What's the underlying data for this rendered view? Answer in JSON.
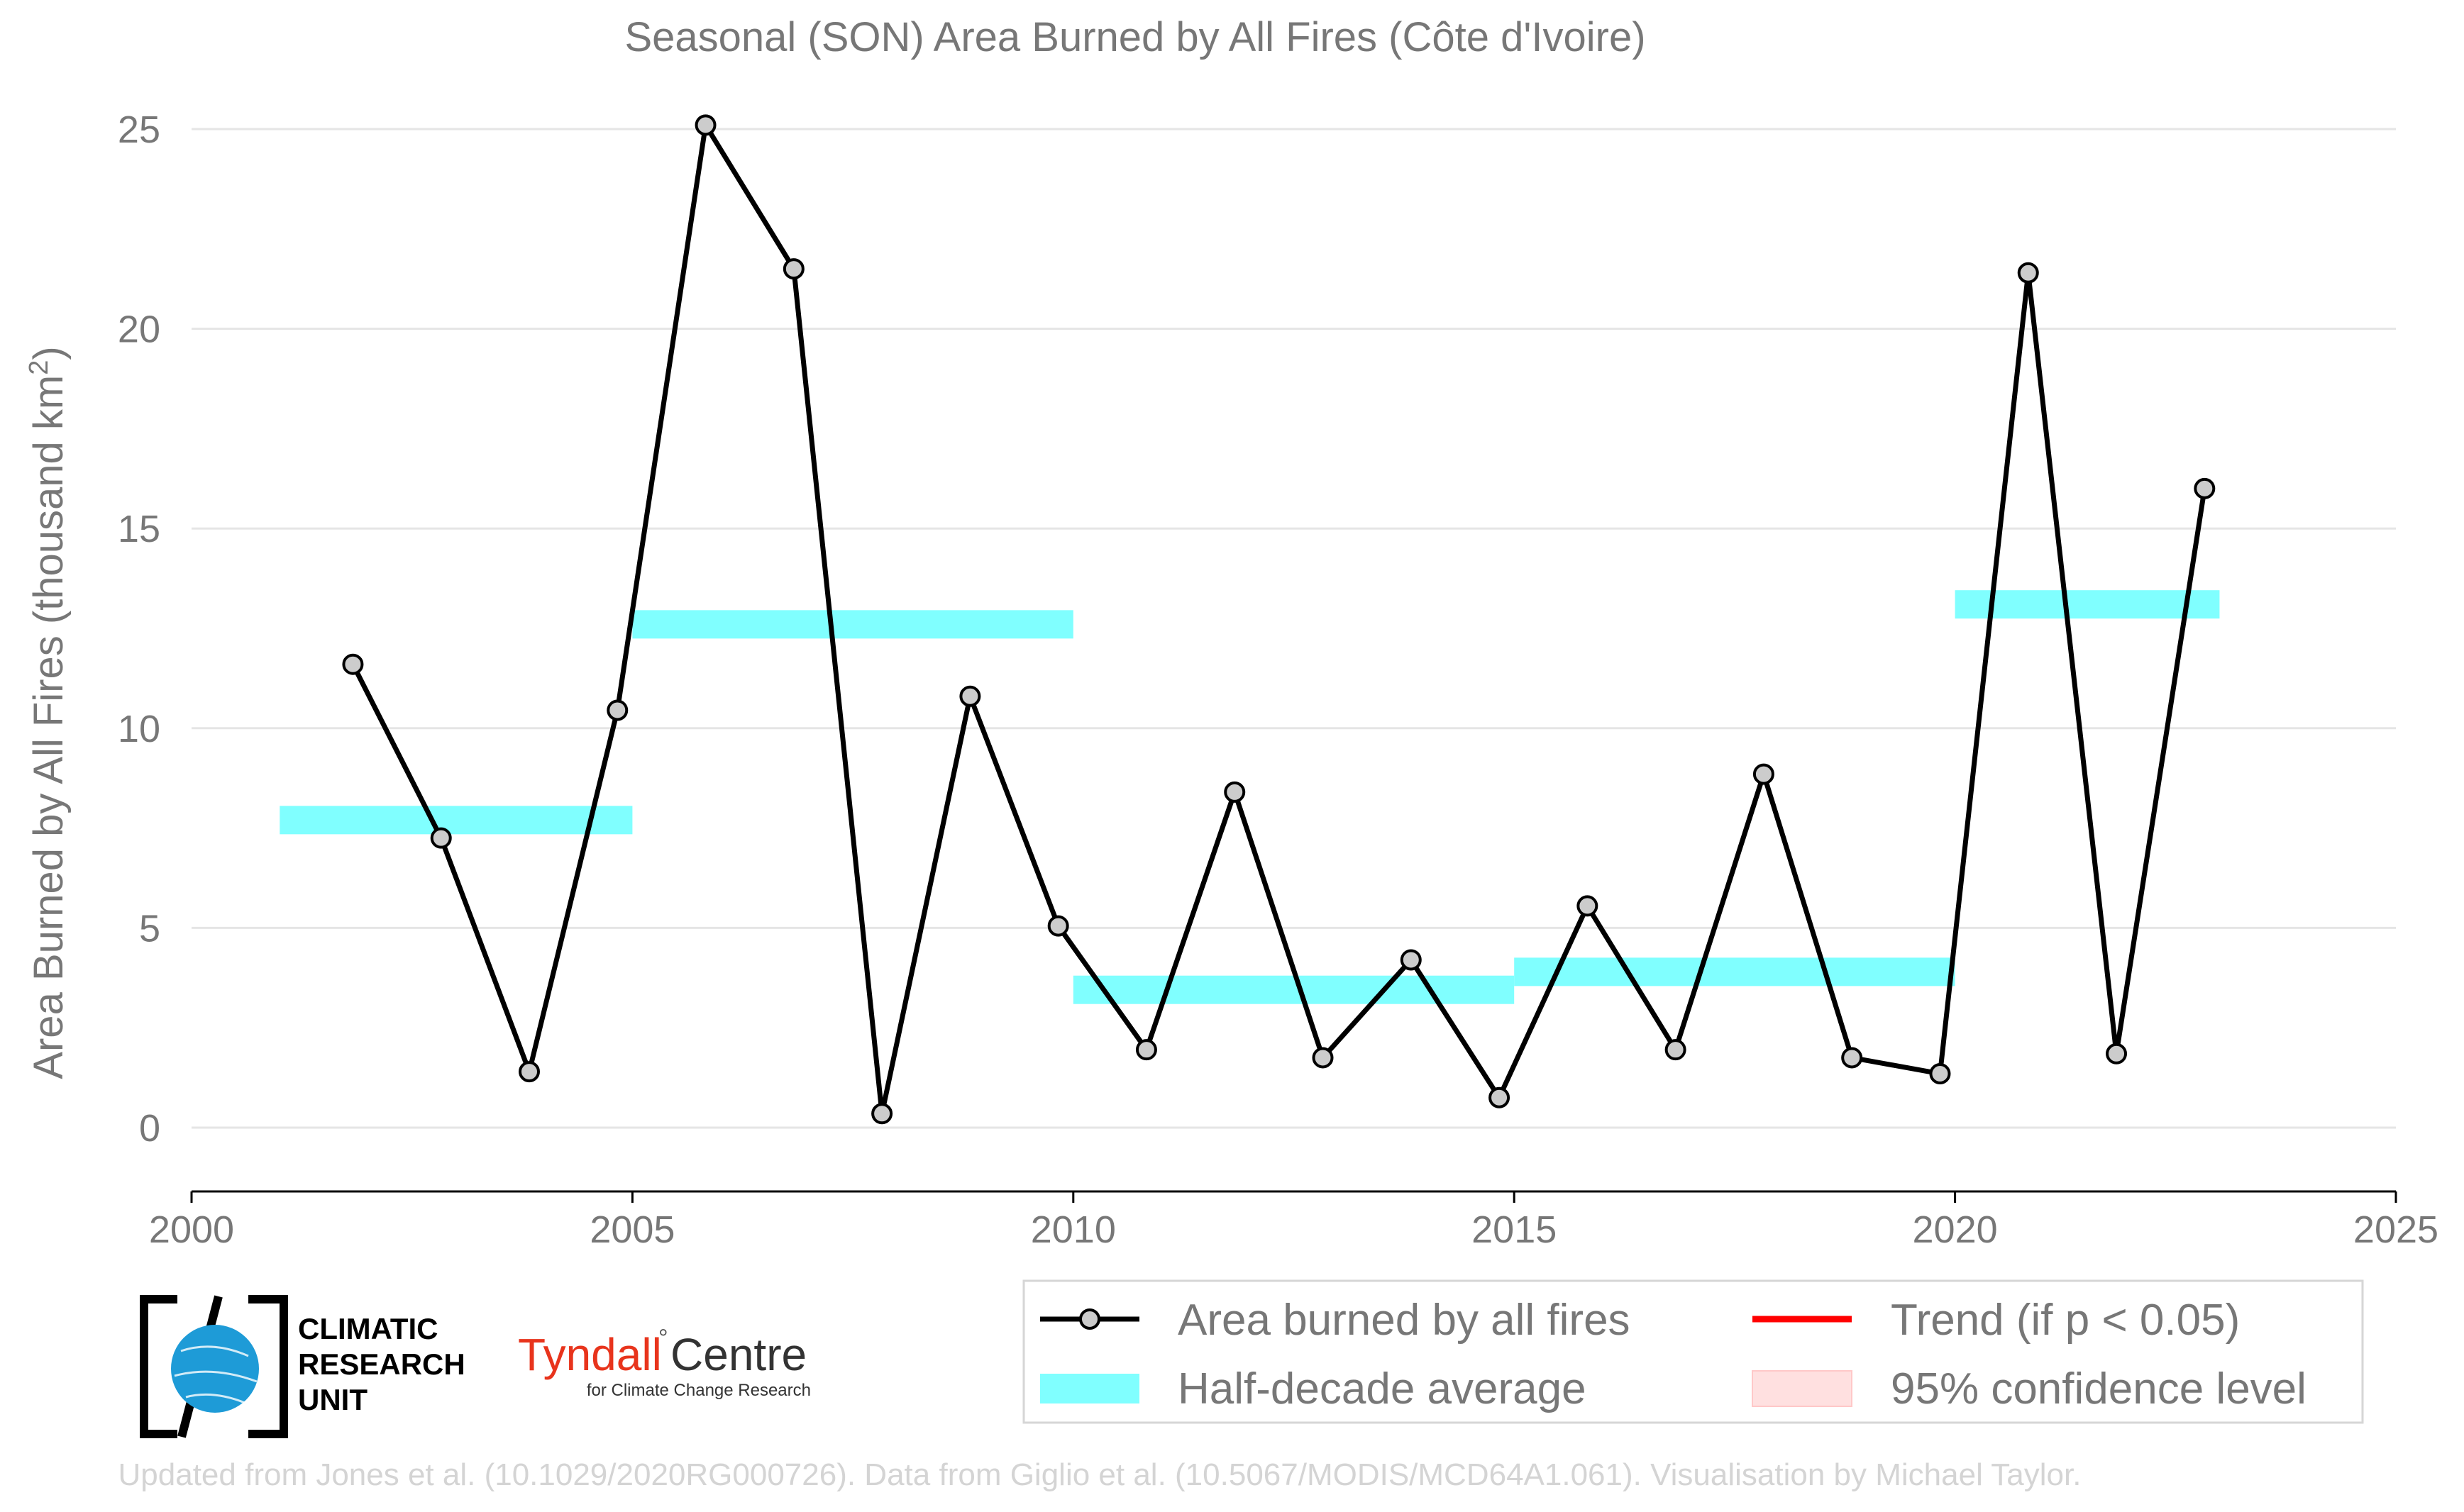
{
  "chart_data": {
    "type": "line",
    "title": "Seasonal (SON) Area Burned by All Fires (Côte d'Ivoire)",
    "ylabel_main": "Area Burned by All Fires (thousand km",
    "ylabel_sup": "2",
    "ylabel_close": ")",
    "xlabel": "",
    "xlim": [
      2000,
      2025
    ],
    "ylim": [
      0,
      25
    ],
    "x_ticks": [
      2000,
      2005,
      2010,
      2015,
      2020,
      2025
    ],
    "y_ticks": [
      0,
      5,
      10,
      15,
      20,
      25
    ],
    "grid": true,
    "series": [
      {
        "name": "Area burned by all fires",
        "x": [
          2001.83,
          2002.83,
          2003.83,
          2004.83,
          2005.83,
          2006.83,
          2007.83,
          2008.83,
          2009.83,
          2010.83,
          2011.83,
          2012.83,
          2013.83,
          2014.83,
          2015.83,
          2016.83,
          2017.83,
          2018.83,
          2019.83,
          2020.83,
          2021.83,
          2022.83
        ],
        "values": [
          11.6,
          7.25,
          1.4,
          10.45,
          25.1,
          21.5,
          0.35,
          10.8,
          5.05,
          1.95,
          8.4,
          1.75,
          4.2,
          0.75,
          5.55,
          1.95,
          8.85,
          1.75,
          1.35,
          21.4,
          1.85,
          16.0
        ]
      }
    ],
    "half_decade_averages": [
      {
        "start": 2001,
        "end": 2005,
        "value": 7.7
      },
      {
        "start": 2005,
        "end": 2010,
        "value": 12.6
      },
      {
        "start": 2010,
        "end": 2015,
        "value": 3.45
      },
      {
        "start": 2015,
        "end": 2020,
        "value": 3.9
      },
      {
        "start": 2020,
        "end": 2023,
        "value": 13.1
      }
    ],
    "legend": {
      "position": "bottom-right",
      "items": [
        "Area burned by all fires",
        "Half-decade average",
        "Trend (if p < 0.05)",
        "95% confidence level"
      ]
    },
    "colors": {
      "line": "#000000",
      "marker_fill": "#cccccc",
      "average": "#80ffff",
      "trend": "#ff0000",
      "confidence": "#ffe0e0",
      "grid": "#e5e5e5",
      "text": "#777777"
    }
  },
  "logos": {
    "cru_line1": "CLIMATIC",
    "cru_line2": "RESEARCH",
    "cru_line3": "UNIT",
    "tyndall_name": "Tyndall",
    "tyndall_centre": "Centre",
    "tyndall_sub": "for Climate Change Research"
  },
  "footer": "Updated from Jones et al. (10.1029/2020RG000726). Data from Giglio et al. (10.5067/MODIS/MCD64A1.061). Visualisation by Michael Taylor."
}
